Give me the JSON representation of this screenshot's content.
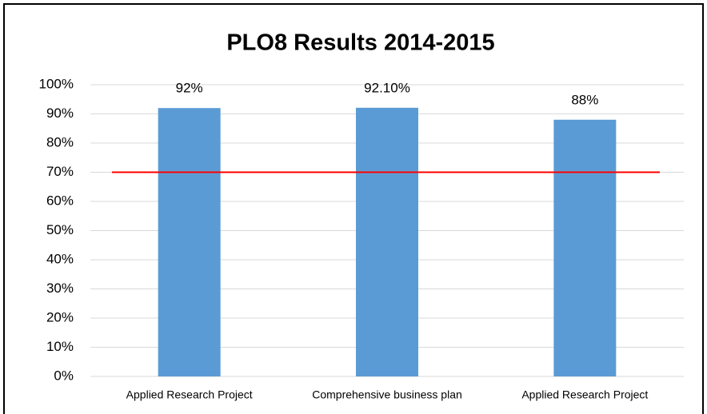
{
  "chart_data": {
    "type": "bar",
    "title": "PLO8 Results 2014-2015",
    "categories": [
      "Applied Research Project",
      "Comprehensive business plan",
      "Applied Research Project"
    ],
    "values": [
      92,
      92.1,
      88
    ],
    "value_labels": [
      "92%",
      "92.10%",
      "88%"
    ],
    "color": "#5b9bd5",
    "ylim": [
      0,
      100
    ],
    "yticks": [
      {
        "value": 0,
        "label": "0%"
      },
      {
        "value": 10,
        "label": "10%"
      },
      {
        "value": 20,
        "label": "20%"
      },
      {
        "value": 30,
        "label": "30%"
      },
      {
        "value": 40,
        "label": "40%"
      },
      {
        "value": 50,
        "label": "50%"
      },
      {
        "value": 60,
        "label": "60%"
      },
      {
        "value": 70,
        "label": "70%"
      },
      {
        "value": 80,
        "label": "80%"
      },
      {
        "value": 90,
        "label": "90%"
      },
      {
        "value": 100,
        "label": "100%"
      }
    ],
    "grid": true,
    "reference_line": {
      "value": 70,
      "color": "#ff0000"
    }
  }
}
